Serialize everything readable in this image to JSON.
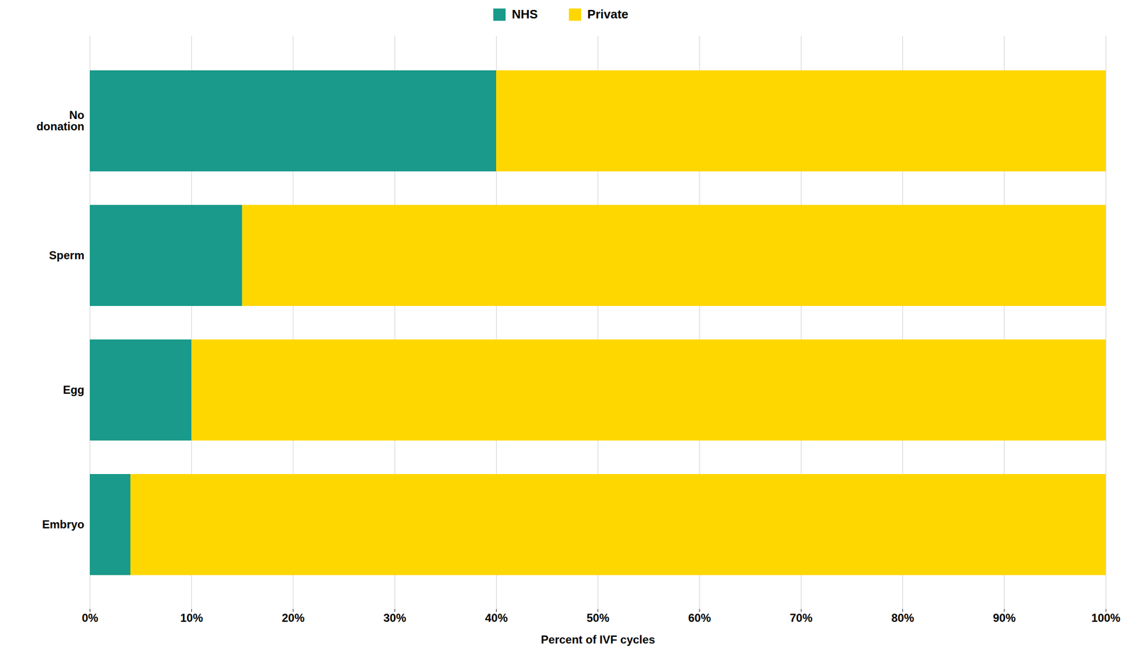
{
  "chart_data": {
    "type": "bar",
    "orientation": "horizontal",
    "stacked": true,
    "categories": [
      "No\ndonation",
      "Sperm",
      "Egg",
      "Embryo"
    ],
    "series": [
      {
        "name": "NHS",
        "color": "#1a9a8a",
        "values": [
          40,
          15,
          10,
          4
        ]
      },
      {
        "name": "Private",
        "color": "#FFD700",
        "values": [
          60,
          85,
          90,
          96
        ]
      }
    ],
    "xlabel": "Percent of IVF cycles",
    "xlim": [
      0,
      100
    ],
    "xticks": [
      {
        "value": 0,
        "label": "0%"
      },
      {
        "value": 10,
        "label": "10%"
      },
      {
        "value": 20,
        "label": "20%"
      },
      {
        "value": 30,
        "label": "30%"
      },
      {
        "value": 40,
        "label": "40%"
      },
      {
        "value": 50,
        "label": "50%"
      },
      {
        "value": 60,
        "label": "60%"
      },
      {
        "value": 70,
        "label": "70%"
      },
      {
        "value": 80,
        "label": "80%"
      },
      {
        "value": 90,
        "label": "90%"
      },
      {
        "value": 100,
        "label": "100%"
      }
    ],
    "grid": true,
    "legend": "top"
  }
}
